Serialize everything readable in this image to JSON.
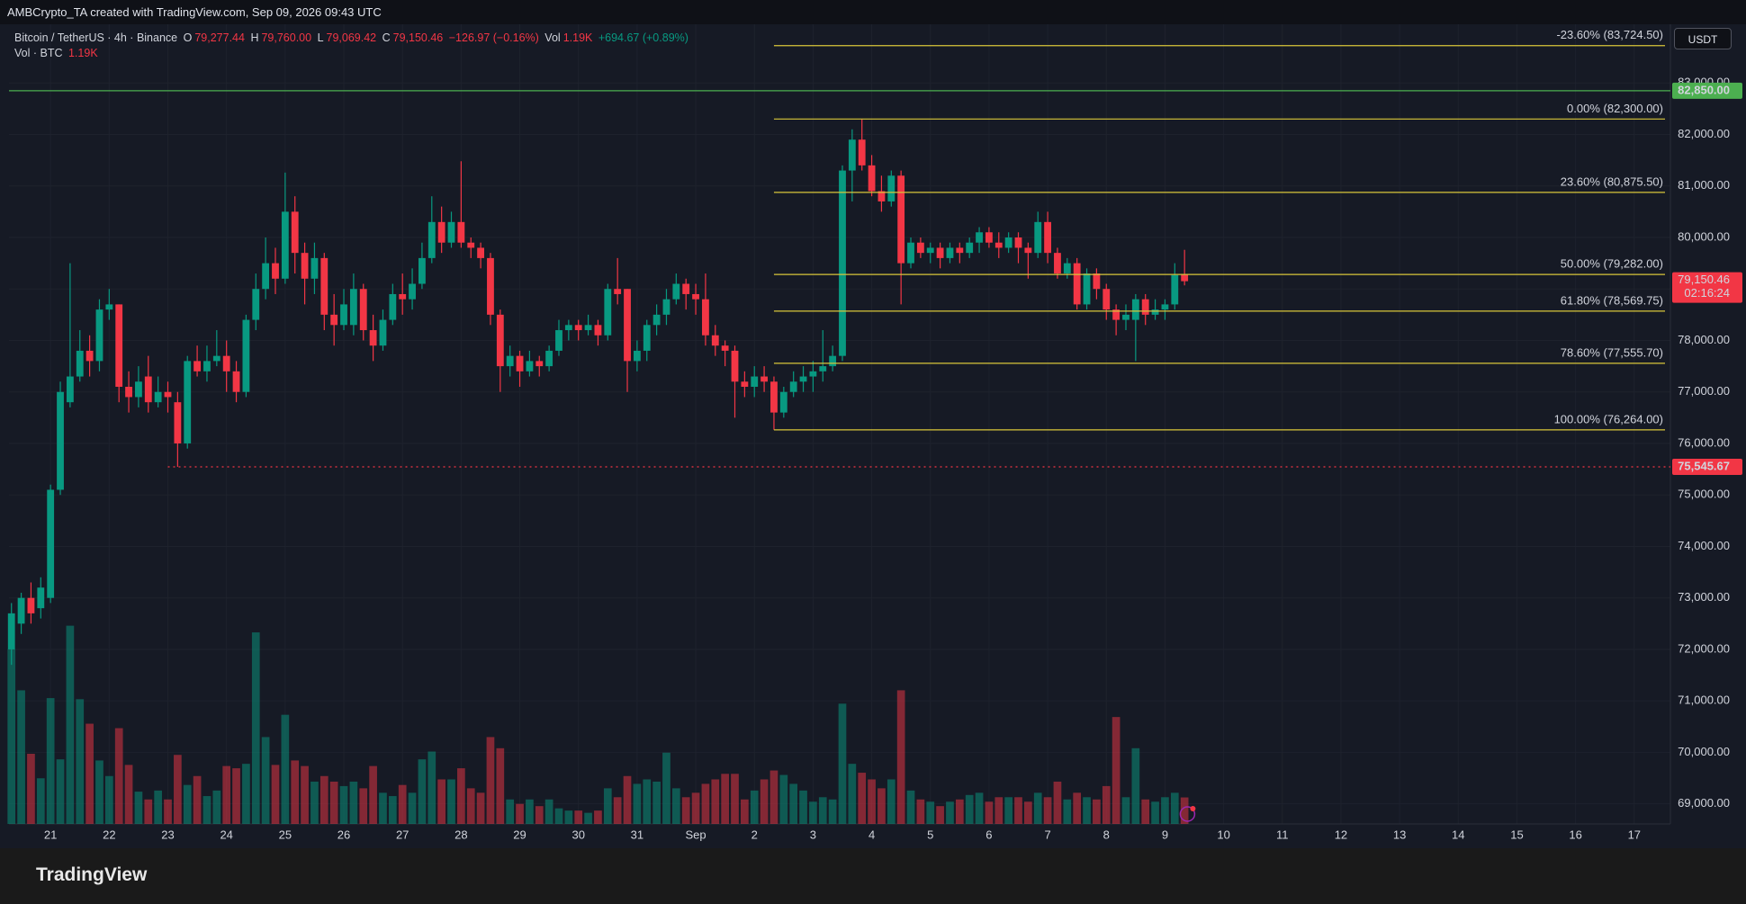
{
  "header": "AMBCrypto_TA created with TradingView.com, Sep 09, 2026 09:43 UTC",
  "footer": {
    "logo": "TradingView"
  },
  "chart_data": {
    "type": "candlestick",
    "title": "Bitcoin / TetherUS · 4h · Binance",
    "legend": {
      "o_label": "O",
      "o": "79,277.44",
      "h_label": "H",
      "h": "79,760.00",
      "l_label": "L",
      "l": "79,069.42",
      "c_label": "C",
      "c": "79,150.46",
      "change": "−126.97 (−0.16%)",
      "vol_label": "Vol",
      "vol": "1.19K",
      "vol_change": "+694.67 (+0.89%)",
      "vol_row_label": "Vol · BTC",
      "vol_row_value": "1.19K"
    },
    "currency": "USDT",
    "up_color": "#089981",
    "down_color": "#f23645",
    "open": [
      72000,
      72500,
      73000,
      72800,
      73000,
      75100,
      76800,
      77300,
      77800,
      77600,
      78600,
      78700,
      77100,
      76900,
      77300,
      76800,
      77000,
      76800,
      76000,
      77600,
      77400,
      77600,
      77700,
      77400,
      77000,
      78400,
      79000,
      79500,
      79200,
      80500,
      79700,
      79200,
      79600,
      78500,
      78300,
      78300,
      79000,
      78200,
      77900,
      78400,
      78900,
      78800,
      79100,
      79600,
      80300,
      79900,
      80300,
      79900,
      79800,
      79600,
      78500,
      77500,
      77700,
      77400,
      77600,
      77500,
      77800,
      78200,
      78300,
      78200,
      78300,
      78100,
      79000,
      79000,
      77600,
      77800,
      78300,
      78500,
      78800,
      79100,
      78900,
      78800,
      78100,
      77900,
      77800,
      77200,
      77100,
      77300,
      77200,
      76600,
      77000,
      77200,
      77300,
      77400,
      77500,
      77700,
      81300,
      81900,
      81400,
      80900,
      80700,
      81200,
      79500,
      79900,
      79700,
      79800,
      79600,
      79800,
      79700,
      79900,
      80100,
      79900,
      79800,
      80000,
      79800,
      79700,
      80300,
      79700,
      79300,
      79500,
      78700,
      79300,
      79000,
      78600,
      78400,
      78400,
      78800,
      78500,
      78600,
      78700,
      79277.44
    ],
    "high": [
      72900,
      73100,
      73300,
      73400,
      75200,
      77200,
      79500,
      78200,
      78100,
      78800,
      79000,
      78700,
      77400,
      77500,
      77700,
      77300,
      77200,
      77000,
      77700,
      77900,
      77900,
      78200,
      78000,
      77600,
      78500,
      79300,
      80000,
      79800,
      81260,
      80800,
      79900,
      79900,
      79700,
      78900,
      79000,
      79300,
      79100,
      78500,
      78600,
      79100,
      79300,
      79400,
      79900,
      80800,
      80600,
      80500,
      81480,
      80000,
      79900,
      79700,
      78600,
      77900,
      77800,
      77800,
      77700,
      77900,
      78400,
      78400,
      78400,
      78500,
      78400,
      79100,
      79600,
      79000,
      78000,
      78400,
      78700,
      79000,
      79300,
      79200,
      79100,
      79300,
      78300,
      78000,
      77900,
      77400,
      77500,
      77500,
      77300,
      77100,
      77400,
      77500,
      77600,
      78200,
      77900,
      81400,
      82100,
      82300,
      81600,
      81200,
      81300,
      81300,
      80000,
      80000,
      79900,
      79900,
      79900,
      79900,
      80000,
      80200,
      80200,
      80100,
      80100,
      80100,
      79900,
      80500,
      80500,
      79800,
      79600,
      79600,
      79400,
      79400,
      79100,
      78700,
      78700,
      78900,
      78900,
      78800,
      78800,
      79500,
      79760
    ],
    "low": [
      71700,
      72300,
      72500,
      72600,
      72900,
      75000,
      76700,
      77200,
      77300,
      77400,
      78400,
      76800,
      76600,
      76700,
      76600,
      76700,
      76600,
      75545.67,
      75900,
      77300,
      77200,
      77500,
      77000,
      76800,
      76900,
      78200,
      78800,
      78900,
      79100,
      79300,
      78700,
      78900,
      78200,
      77900,
      78200,
      78100,
      78000,
      77600,
      77800,
      78300,
      78500,
      78600,
      79000,
      79500,
      79700,
      79800,
      79800,
      79600,
      79400,
      78300,
      77000,
      77300,
      77100,
      77300,
      77300,
      77400,
      77700,
      78000,
      78000,
      78100,
      77900,
      78000,
      78700,
      77000,
      77400,
      77600,
      78100,
      78300,
      78700,
      78600,
      78500,
      77900,
      77700,
      77500,
      76500,
      76900,
      76900,
      77000,
      76264,
      76500,
      76900,
      77000,
      77000,
      77200,
      77400,
      77600,
      80700,
      81300,
      80800,
      80500,
      80600,
      78700,
      79400,
      79600,
      79500,
      79400,
      79500,
      79500,
      79600,
      79700,
      79800,
      79600,
      79700,
      79500,
      79200,
      79600,
      79500,
      79200,
      79200,
      78600,
      78600,
      78800,
      78400,
      78100,
      78200,
      77600,
      78300,
      78400,
      78400,
      78600,
      79069.42
    ],
    "close": [
      72700,
      73000,
      72700,
      73200,
      75100,
      77000,
      77300,
      77800,
      77600,
      78600,
      78700,
      77100,
      76900,
      77200,
      76800,
      77000,
      76900,
      76000,
      77600,
      77400,
      77600,
      77700,
      77400,
      77000,
      78400,
      79000,
      79500,
      79200,
      80500,
      79700,
      79200,
      79600,
      78500,
      78300,
      78700,
      79000,
      78200,
      77900,
      78400,
      78900,
      78800,
      79100,
      79600,
      80300,
      79900,
      80300,
      79900,
      79800,
      79600,
      78500,
      77500,
      77700,
      77400,
      77600,
      77500,
      77800,
      78200,
      78300,
      78200,
      78300,
      78100,
      79000,
      78900,
      77600,
      77800,
      78300,
      78500,
      78800,
      79100,
      78900,
      78800,
      78100,
      77900,
      77800,
      77200,
      77100,
      77300,
      77200,
      76600,
      77000,
      77200,
      77300,
      77400,
      77500,
      77700,
      81300,
      81900,
      81400,
      80900,
      80700,
      81200,
      79500,
      79900,
      79700,
      79800,
      79600,
      79800,
      79700,
      79900,
      80100,
      79900,
      79800,
      80000,
      79800,
      79700,
      80300,
      79700,
      79300,
      79500,
      78700,
      79300,
      79000,
      78600,
      78400,
      78500,
      78800,
      78500,
      78600,
      78700,
      79270,
      79150.46
    ],
    "volume": [
      7850,
      6000,
      3150,
      2050,
      5650,
      2900,
      8900,
      5600,
      4500,
      2850,
      2150,
      4300,
      2650,
      1450,
      1100,
      1500,
      1100,
      3100,
      1750,
      2150,
      1250,
      1500,
      2600,
      2500,
      2700,
      8600,
      3900,
      2650,
      4900,
      2850,
      2600,
      1900,
      2150,
      1900,
      1700,
      1900,
      1600,
      2600,
      1400,
      1250,
      1750,
      1400,
      2900,
      3250,
      2000,
      2000,
      2500,
      1600,
      1400,
      3900,
      3400,
      1100,
      900,
      1100,
      800,
      1100,
      700,
      600,
      600,
      500,
      600,
      1600,
      1200,
      2150,
      1800,
      2000,
      1900,
      3200,
      1600,
      1200,
      1400,
      1800,
      2000,
      2250,
      2250,
      1100,
      1500,
      2000,
      2400,
      2200,
      1800,
      1500,
      1000,
      1200,
      1100,
      5400,
      2700,
      2300,
      2000,
      1600,
      2000,
      6000,
      1500,
      1100,
      1000,
      800,
      1000,
      1100,
      1300,
      1400,
      1000,
      1200,
      1200,
      1200,
      1000,
      1400,
      1200,
      1900,
      1100,
      1400,
      1200,
      1100,
      1700,
      4800,
      1200,
      3400,
      1100,
      1000,
      1200,
      1400,
      1190
    ],
    "vol_lim": [
      0,
      35900
    ],
    "xlim": [
      -0.25,
      169.7
    ],
    "xticks": [
      {
        "value": 4,
        "label": "21"
      },
      {
        "value": 10,
        "label": "22"
      },
      {
        "value": 16,
        "label": "23"
      },
      {
        "value": 22,
        "label": "24"
      },
      {
        "value": 28,
        "label": "25"
      },
      {
        "value": 34,
        "label": "26"
      },
      {
        "value": 40,
        "label": "27"
      },
      {
        "value": 46,
        "label": "28"
      },
      {
        "value": 52,
        "label": "29"
      },
      {
        "value": 58,
        "label": "30"
      },
      {
        "value": 64,
        "label": "31"
      },
      {
        "value": 70,
        "label": "Sep"
      },
      {
        "value": 76,
        "label": "2"
      },
      {
        "value": 82,
        "label": "3"
      },
      {
        "value": 88,
        "label": "4"
      },
      {
        "value": 94,
        "label": "5"
      },
      {
        "value": 100,
        "label": "6"
      },
      {
        "value": 106,
        "label": "7"
      },
      {
        "value": 112,
        "label": "8"
      },
      {
        "value": 118,
        "label": "9"
      },
      {
        "value": 124,
        "label": "10"
      },
      {
        "value": 130,
        "label": "11"
      },
      {
        "value": 136,
        "label": "12"
      },
      {
        "value": 142,
        "label": "13"
      },
      {
        "value": 148,
        "label": "14"
      },
      {
        "value": 154,
        "label": "15"
      },
      {
        "value": 160,
        "label": "16"
      },
      {
        "value": 166,
        "label": "17"
      }
    ],
    "ylim": [
      68610,
      84140
    ],
    "yticks": [
      {
        "value": 69000,
        "label": "69,000.00"
      },
      {
        "value": 70000,
        "label": "70,000.00"
      },
      {
        "value": 71000,
        "label": "71,000.00"
      },
      {
        "value": 72000,
        "label": "72,000.00"
      },
      {
        "value": 73000,
        "label": "73,000.00"
      },
      {
        "value": 74000,
        "label": "74,000.00"
      },
      {
        "value": 75000,
        "label": "75,000.00"
      },
      {
        "value": 76000,
        "label": "76,000.00"
      },
      {
        "value": 77000,
        "label": "77,000.00"
      },
      {
        "value": 78000,
        "label": "78,000.00"
      },
      {
        "value": 79000,
        "label": "79,000.00"
      },
      {
        "value": 80000,
        "label": "80,000.00"
      },
      {
        "value": 81000,
        "label": "81,000.00"
      },
      {
        "value": 82000,
        "label": "82,000.00"
      },
      {
        "value": 83000,
        "label": "83,000.00"
      }
    ],
    "grid": true,
    "fib": {
      "x_start": 78,
      "color": "#d8c63a",
      "label_color": "#f0d84a",
      "levels": [
        {
          "value": 83724.5,
          "label": "-23.60% (83,724.50)"
        },
        {
          "value": 82300,
          "label": "0.00% (82,300.00)"
        },
        {
          "value": 80875.5,
          "label": "23.60% (80,875.50)"
        },
        {
          "value": 79282,
          "label": "50.00% (79,282.00)"
        },
        {
          "value": 78569.75,
          "label": "61.80% (78,569.75)"
        },
        {
          "value": 77555.7,
          "label": "78.60% (77,555.70)"
        },
        {
          "value": 76264,
          "label": "100.00% (76,264.00)"
        }
      ]
    },
    "hlines": [
      {
        "value": 82850,
        "label": "82,850.00",
        "color": "#4caf50",
        "x_start": -0.25,
        "dotted": false
      },
      {
        "value": 75545.67,
        "label": "75,545.67",
        "color": "#f23645",
        "x_start": 16,
        "dotted": true
      }
    ],
    "last_price": {
      "value": 79150.46,
      "label": "79,150.46",
      "countdown": "02:16:24",
      "color": "#f23645"
    }
  }
}
